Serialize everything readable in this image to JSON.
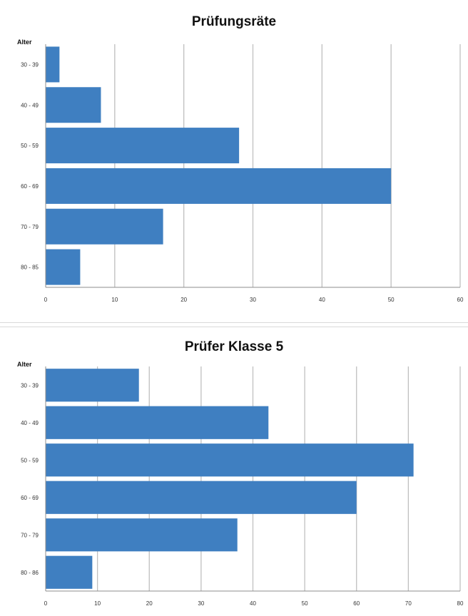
{
  "chart_data": [
    {
      "type": "bar",
      "orientation": "horizontal",
      "title": "Prüfungsräte",
      "ylabel": "Alter",
      "categories": [
        "30 - 39",
        "40 - 49",
        "50 - 59",
        "60 - 69",
        "70 - 79",
        "80 - 85"
      ],
      "values": [
        2,
        8,
        28,
        50,
        17,
        5
      ],
      "xlim": [
        0,
        60
      ],
      "xticks": [
        0,
        10,
        20,
        30,
        40,
        50,
        60
      ],
      "grid": true,
      "bar_color": "#3f7fc1"
    },
    {
      "type": "bar",
      "orientation": "horizontal",
      "title": "Prüfer Klasse 5",
      "ylabel": "Alter",
      "categories": [
        "30 - 39",
        "40 - 49",
        "50 - 59",
        "60 - 69",
        "70 - 79",
        "80 - 86"
      ],
      "values": [
        18,
        43,
        71,
        60,
        37,
        9
      ],
      "xlim": [
        0,
        80
      ],
      "xticks": [
        0,
        10,
        20,
        30,
        40,
        50,
        60,
        70,
        80
      ],
      "grid": true,
      "bar_color": "#3f7fc1"
    }
  ]
}
